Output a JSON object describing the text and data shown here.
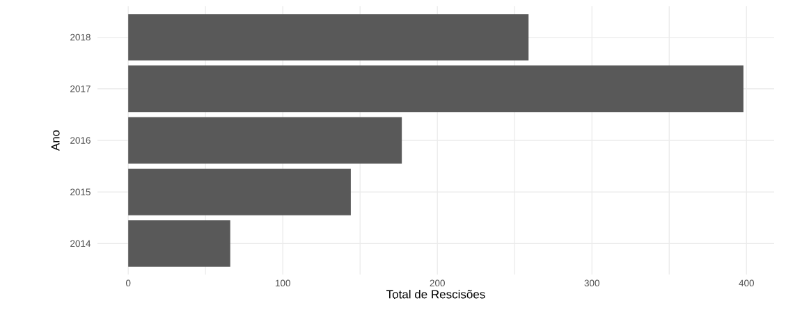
{
  "chart_data": {
    "type": "bar",
    "orientation": "horizontal",
    "xlabel": "Total de Rescisões",
    "ylabel": "Ano",
    "categories": [
      "2018",
      "2017",
      "2016",
      "2015",
      "2014"
    ],
    "values": [
      259,
      398,
      177,
      144,
      66
    ],
    "color": "#595959",
    "xlim": [
      -19.9,
      417.9
    ],
    "xticks": [
      0,
      {
        "value": 50,
        "label": null
      },
      100,
      {
        "value": 150,
        "label": null
      },
      200,
      {
        "value": 250,
        "label": null
      },
      300,
      {
        "value": 350,
        "label": null
      },
      400
    ],
    "grid": true
  }
}
